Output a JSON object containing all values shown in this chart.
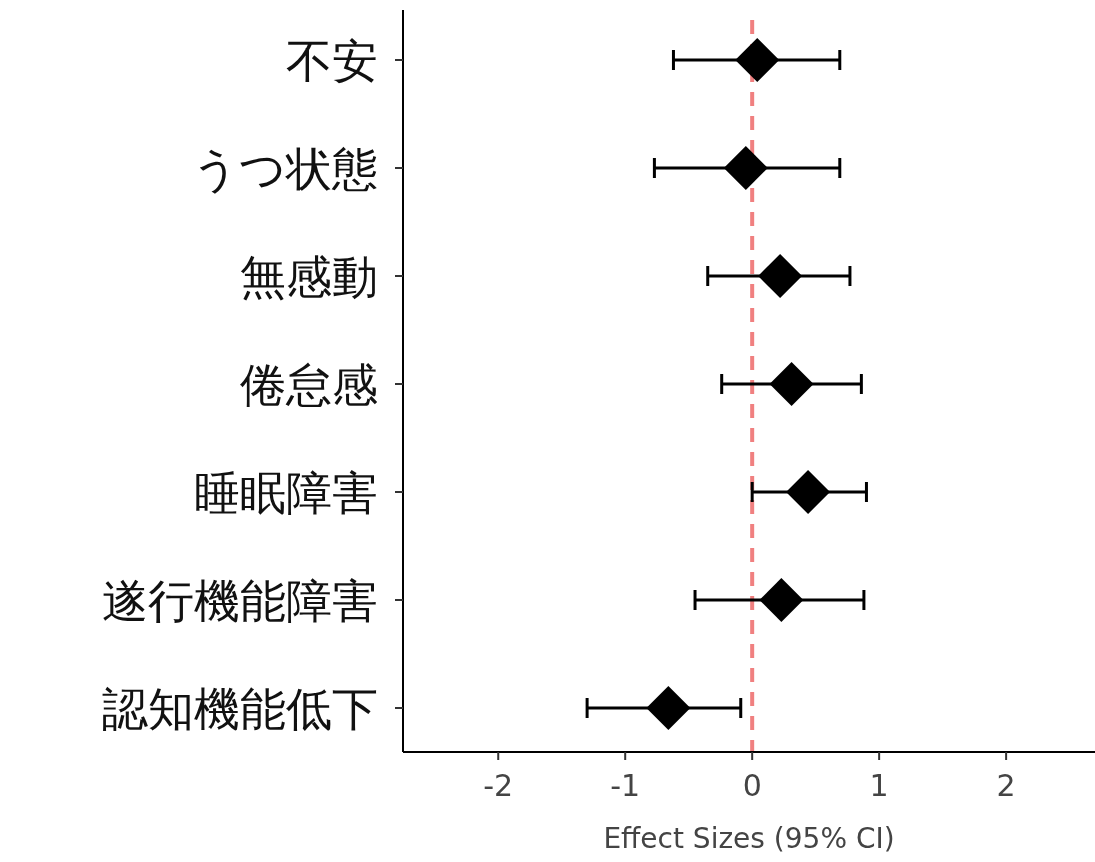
{
  "chart_data": {
    "type": "scatter",
    "orientation": "horizontal",
    "xlabel": "Effect Sizes (95% CI)",
    "categories": [
      "不安",
      "うつ状態",
      "無感動",
      "倦怠感",
      "睡眠障害",
      "遂行機能障害",
      "認知機能低下"
    ],
    "values": [
      0.04,
      -0.05,
      0.22,
      0.31,
      0.44,
      0.23,
      -0.66
    ],
    "errors": [
      [
        -0.62,
        0.69
      ],
      [
        -0.77,
        0.69
      ],
      [
        -0.35,
        0.77
      ],
      [
        -0.24,
        0.86
      ],
      [
        0.0,
        0.9
      ],
      [
        -0.45,
        0.88
      ],
      [
        -1.3,
        -0.09
      ]
    ],
    "color": "#000000",
    "marker": "diamond",
    "xlim": [
      -2.75,
      2.7
    ],
    "xticks": [
      -2,
      -1,
      0,
      1,
      2
    ],
    "ref_lines": [
      {
        "axis": "x",
        "value": 0,
        "color": "#f08080",
        "line_style": "dashed"
      }
    ],
    "grid": false
  }
}
